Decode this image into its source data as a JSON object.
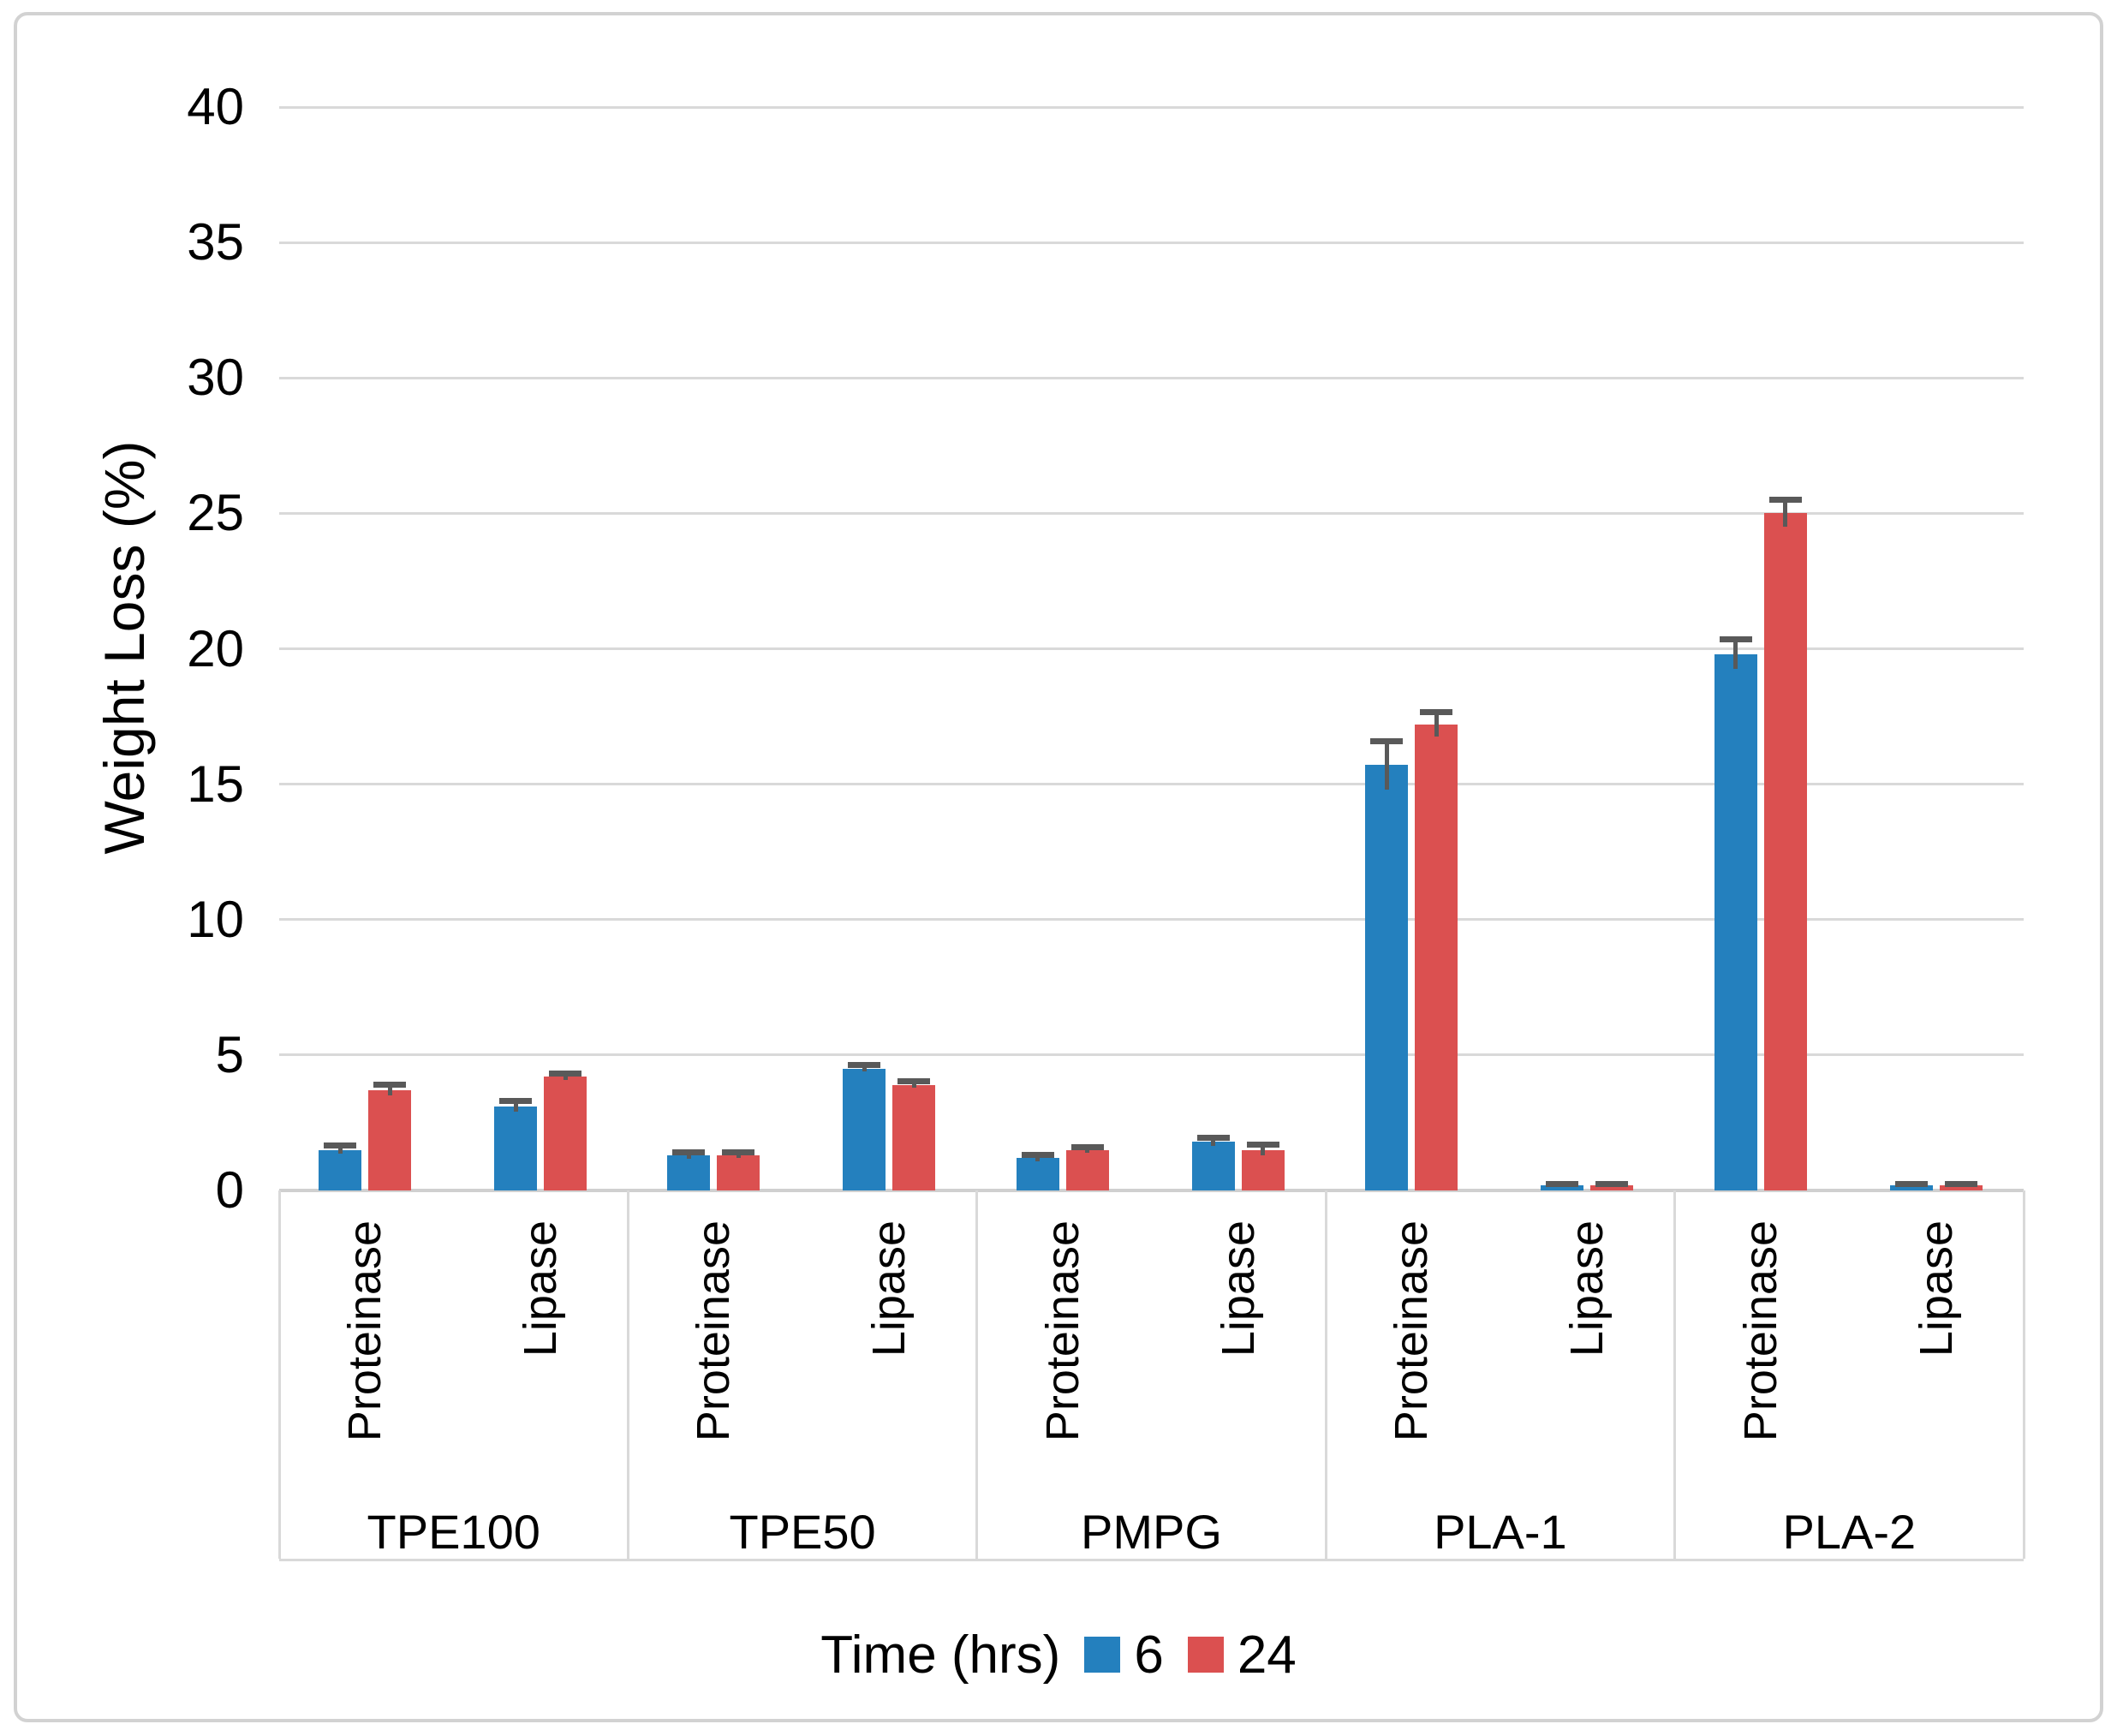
{
  "chart_data": {
    "type": "bar",
    "title": "",
    "ylabel": "Weight Loss (%)",
    "xlabel": "",
    "ylim": [
      0,
      40
    ],
    "y_ticks": [
      0,
      5,
      10,
      15,
      20,
      25,
      30,
      35,
      40
    ],
    "grid": true,
    "legend_position": "bottom",
    "legend_title": "Time (hrs)",
    "series": [
      {
        "name": "6",
        "color": "#2480be"
      },
      {
        "name": "24",
        "color": "#db5050"
      }
    ],
    "error_bar_color": "#595959",
    "gridline_color": "#d9d9d9",
    "groups": [
      {
        "label": "TPE100",
        "bars": [
          {
            "category": "Proteinase",
            "values": [
              1.5,
              3.7
            ],
            "errors": [
              0.15,
              0.2
            ]
          },
          {
            "category": "Lipase",
            "values": [
              3.1,
              4.2
            ],
            "errors": [
              0.2,
              0.12
            ]
          }
        ]
      },
      {
        "label": "TPE50",
        "bars": [
          {
            "category": "Proteinase",
            "values": [
              1.3,
              1.3
            ],
            "errors": [
              0.12,
              0.1
            ]
          },
          {
            "category": "Lipase",
            "values": [
              4.5,
              3.9
            ],
            "errors": [
              0.12,
              0.12
            ]
          }
        ]
      },
      {
        "label": "PMPG",
        "bars": [
          {
            "category": "Proteinase",
            "values": [
              1.2,
              1.5
            ],
            "errors": [
              0.12,
              0.1
            ]
          },
          {
            "category": "Lipase",
            "values": [
              1.8,
              1.5
            ],
            "errors": [
              0.15,
              0.2
            ]
          }
        ]
      },
      {
        "label": "PLA-1",
        "bars": [
          {
            "category": "Proteinase",
            "values": [
              15.7,
              17.2
            ],
            "errors": [
              0.9,
              0.45
            ]
          },
          {
            "category": "Lipase",
            "values": [
              0.2,
              0.2
            ],
            "errors": [
              0.05,
              0.05
            ]
          }
        ]
      },
      {
        "label": "PLA-2",
        "bars": [
          {
            "category": "Proteinase",
            "values": [
              19.8,
              25.0
            ],
            "errors": [
              0.55,
              0.5
            ]
          },
          {
            "category": "Lipase",
            "values": [
              0.2,
              0.2
            ],
            "errors": [
              0.05,
              0.05
            ]
          }
        ]
      }
    ]
  },
  "legend": {
    "title": "Time (hrs)",
    "entries": [
      {
        "label": "6",
        "color": "#2480be"
      },
      {
        "label": "24",
        "color": "#db5050"
      }
    ]
  }
}
